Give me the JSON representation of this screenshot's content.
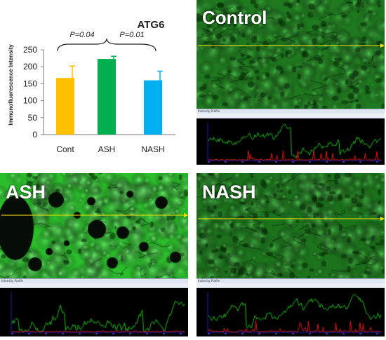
{
  "chart_data": {
    "type": "bar",
    "title": "ATG6",
    "ylabel": "Immunofluorescence Intensity",
    "xlabel": "",
    "categories": [
      "Cont",
      "ASH",
      "NASH"
    ],
    "values": [
      167,
      223,
      160
    ],
    "errors": [
      35,
      8,
      27
    ],
    "colors": [
      "#ffc000",
      "#00b050",
      "#00b0f0"
    ],
    "ylim": [
      0,
      250
    ],
    "yticks": [
      "0",
      "50",
      "100",
      "150",
      "200",
      "250"
    ],
    "annotations": [
      "P=0.04",
      "P=0.01"
    ],
    "grid": false
  },
  "panels": {
    "control": {
      "label": "Control"
    },
    "ash": {
      "label": "ASH"
    },
    "nash": {
      "label": "NASH"
    }
  },
  "profile_window": {
    "title": "Intensity Profile"
  },
  "colors": {
    "tissue_green": "#22c422",
    "tissue_dark": "#0a3a0a",
    "scan_line": "#ffe600",
    "profile_green": "#18c018",
    "profile_red": "#e01818",
    "profile_axis": "#2020c0"
  }
}
